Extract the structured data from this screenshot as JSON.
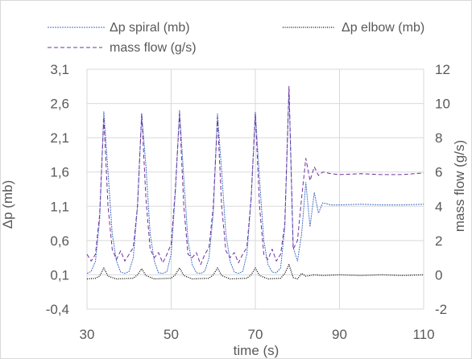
{
  "chart_data": {
    "type": "line",
    "title": "",
    "xlabel": "time (s)",
    "ylabel_left": "Δp (mb)",
    "ylabel_right": "mass flow (g/s)",
    "xlim": [
      30,
      110
    ],
    "ylim_left": [
      -0.4,
      3.1
    ],
    "ylim_right": [
      -2,
      12
    ],
    "x_ticks": [
      30,
      50,
      70,
      90,
      110
    ],
    "x_tick_labels": [
      "30",
      "50",
      "70",
      "90",
      "110"
    ],
    "y_left_ticks": [
      -0.4,
      0.1,
      0.6,
      1.1,
      1.6,
      2.1,
      2.6,
      3.1
    ],
    "y_left_tick_labels": [
      "-0,4",
      "0,1",
      "0,6",
      "1,1",
      "1,6",
      "2,1",
      "2,6",
      "3,1"
    ],
    "y_right_ticks": [
      -2,
      0,
      2,
      4,
      6,
      8,
      10,
      12
    ],
    "y_right_tick_labels": [
      "-2",
      "0",
      "2",
      "4",
      "6",
      "8",
      "10",
      "12"
    ],
    "grid": true,
    "legend_position": "top",
    "series": [
      {
        "name": "Δp spiral (mb)",
        "axis": "left",
        "color": "#4472c4",
        "style": "dashed-fine",
        "points": [
          [
            30,
            0.12
          ],
          [
            31,
            0.15
          ],
          [
            32,
            0.3
          ],
          [
            33,
            0.9
          ],
          [
            34,
            2.48
          ],
          [
            35,
            1.6
          ],
          [
            36,
            0.7
          ],
          [
            37,
            0.3
          ],
          [
            38,
            0.14
          ],
          [
            39,
            0.12
          ],
          [
            40,
            0.15
          ],
          [
            41,
            0.35
          ],
          [
            42,
            1.1
          ],
          [
            43,
            2.45
          ],
          [
            44,
            1.7
          ],
          [
            45,
            0.7
          ],
          [
            46,
            0.3
          ],
          [
            47,
            0.13
          ],
          [
            48,
            0.12
          ],
          [
            49,
            0.15
          ],
          [
            50,
            0.4
          ],
          [
            51,
            1.3
          ],
          [
            52,
            2.5
          ],
          [
            53,
            1.5
          ],
          [
            54,
            0.6
          ],
          [
            55,
            0.25
          ],
          [
            56,
            0.13
          ],
          [
            57,
            0.12
          ],
          [
            58,
            0.15
          ],
          [
            59,
            0.35
          ],
          [
            60,
            1.0
          ],
          [
            61,
            2.45
          ],
          [
            62,
            1.6
          ],
          [
            63,
            0.7
          ],
          [
            64,
            0.3
          ],
          [
            65,
            0.14
          ],
          [
            66,
            0.12
          ],
          [
            67,
            0.15
          ],
          [
            68,
            0.4
          ],
          [
            69,
            1.2
          ],
          [
            70,
            2.48
          ],
          [
            71,
            1.5
          ],
          [
            72,
            0.6
          ],
          [
            73,
            0.25
          ],
          [
            74,
            0.14
          ],
          [
            75,
            0.13
          ],
          [
            76,
            0.2
          ],
          [
            77,
            0.8
          ],
          [
            78,
            2.8
          ],
          [
            79,
            0.5
          ],
          [
            80,
            0.3
          ],
          [
            81,
            0.7
          ],
          [
            82,
            1.45
          ],
          [
            83,
            0.8
          ],
          [
            84,
            1.3
          ],
          [
            85,
            1.0
          ],
          [
            86,
            1.15
          ],
          [
            88,
            1.12
          ],
          [
            90,
            1.12
          ],
          [
            95,
            1.13
          ],
          [
            100,
            1.12
          ],
          [
            105,
            1.12
          ],
          [
            110,
            1.13
          ]
        ]
      },
      {
        "name": "Δp elbow (mb)",
        "axis": "left",
        "color": "#000000",
        "style": "dotted",
        "points": [
          [
            30,
            0.04
          ],
          [
            32,
            0.05
          ],
          [
            33,
            0.08
          ],
          [
            34,
            0.2
          ],
          [
            35,
            0.08
          ],
          [
            37,
            0.04
          ],
          [
            41,
            0.05
          ],
          [
            42,
            0.1
          ],
          [
            43,
            0.19
          ],
          [
            44,
            0.09
          ],
          [
            46,
            0.04
          ],
          [
            50,
            0.05
          ],
          [
            51,
            0.1
          ],
          [
            52,
            0.2
          ],
          [
            53,
            0.09
          ],
          [
            55,
            0.04
          ],
          [
            59,
            0.05
          ],
          [
            60,
            0.1
          ],
          [
            61,
            0.2
          ],
          [
            62,
            0.09
          ],
          [
            64,
            0.04
          ],
          [
            68,
            0.05
          ],
          [
            69,
            0.1
          ],
          [
            70,
            0.2
          ],
          [
            71,
            0.09
          ],
          [
            73,
            0.04
          ],
          [
            76,
            0.05
          ],
          [
            77,
            0.12
          ],
          [
            78,
            0.25
          ],
          [
            79,
            0.06
          ],
          [
            80,
            0.04
          ],
          [
            81,
            0.12
          ],
          [
            82,
            0.08
          ],
          [
            84,
            0.1
          ],
          [
            86,
            0.09
          ],
          [
            90,
            0.1
          ],
          [
            95,
            0.09
          ],
          [
            100,
            0.1
          ],
          [
            105,
            0.09
          ],
          [
            110,
            0.1
          ]
        ]
      },
      {
        "name": "mass flow (g/s)",
        "axis": "right",
        "color": "#7030a0",
        "style": "dashed",
        "points": [
          [
            30,
            1.2
          ],
          [
            31,
            0.8
          ],
          [
            32,
            1.2
          ],
          [
            33,
            3.5
          ],
          [
            34,
            9.2
          ],
          [
            35,
            4.0
          ],
          [
            36,
            1.5
          ],
          [
            37,
            0.9
          ],
          [
            38,
            1.4
          ],
          [
            39,
            0.8
          ],
          [
            40,
            1.2
          ],
          [
            41,
            1.6
          ],
          [
            42,
            4.0
          ],
          [
            43,
            9.4
          ],
          [
            44,
            4.5
          ],
          [
            45,
            1.5
          ],
          [
            46,
            1.0
          ],
          [
            47,
            1.3
          ],
          [
            48,
            0.7
          ],
          [
            49,
            1.2
          ],
          [
            50,
            1.8
          ],
          [
            51,
            5.0
          ],
          [
            52,
            9.4
          ],
          [
            53,
            4.0
          ],
          [
            54,
            1.2
          ],
          [
            55,
            1.0
          ],
          [
            56,
            1.3
          ],
          [
            57,
            0.6
          ],
          [
            58,
            1.2
          ],
          [
            59,
            1.6
          ],
          [
            60,
            4.0
          ],
          [
            61,
            9.2
          ],
          [
            62,
            4.0
          ],
          [
            63,
            1.4
          ],
          [
            64,
            1.0
          ],
          [
            65,
            1.3
          ],
          [
            66,
            0.7
          ],
          [
            67,
            1.2
          ],
          [
            68,
            1.6
          ],
          [
            69,
            4.5
          ],
          [
            70,
            9.4
          ],
          [
            71,
            4.0
          ],
          [
            72,
            1.2
          ],
          [
            73,
            0.9
          ],
          [
            74,
            1.5
          ],
          [
            75,
            0.8
          ],
          [
            76,
            1.2
          ],
          [
            77,
            3.0
          ],
          [
            78,
            11.0
          ],
          [
            79,
            1.5
          ],
          [
            80,
            2.0
          ],
          [
            81,
            4.5
          ],
          [
            82,
            6.8
          ],
          [
            83,
            5.5
          ],
          [
            84,
            6.3
          ],
          [
            85,
            5.8
          ],
          [
            86,
            6.0
          ],
          [
            88,
            5.9
          ],
          [
            90,
            5.85
          ],
          [
            95,
            5.9
          ],
          [
            100,
            5.85
          ],
          [
            105,
            5.85
          ],
          [
            110,
            5.95
          ]
        ]
      }
    ]
  }
}
